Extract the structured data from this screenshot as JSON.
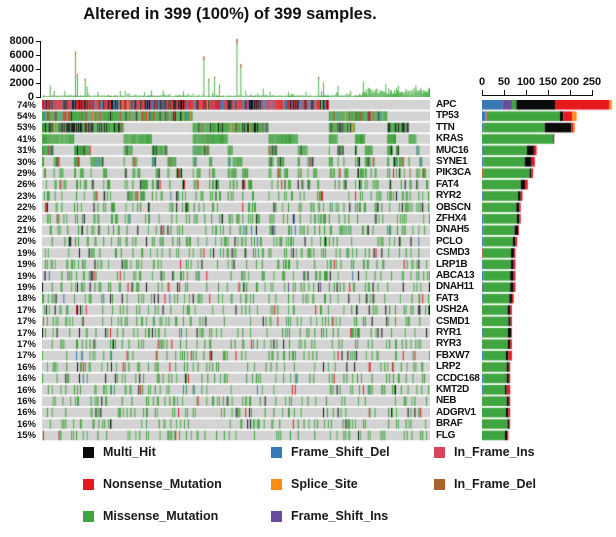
{
  "title": "Altered in 399 (100%) of 399 samples.",
  "chart_data": {
    "type": "oncoplot",
    "title": "Altered in 399 (100%) of 399 samples.",
    "samples": 399,
    "altered_samples": 399,
    "altered_pct": 100,
    "background_color": "#D3D3D3",
    "mutation_types": [
      {
        "key": "Frame_Shift_Del",
        "label": "Frame_Shift_Del",
        "color": "#3779B5"
      },
      {
        "key": "Frame_Shift_Ins",
        "label": "Frame_Shift_Ins",
        "color": "#6A4C9C"
      },
      {
        "key": "In_Frame_Ins",
        "label": "In_Frame_Ins",
        "color": "#D6455C"
      },
      {
        "key": "In_Frame_Del",
        "label": "In_Frame_Del",
        "color": "#A8622F"
      },
      {
        "key": "Missense_Mutation",
        "label": "Missense_Mutation",
        "color": "#3FA53F"
      },
      {
        "key": "Multi_Hit",
        "label": "Multi_Hit",
        "color": "#0A0A0A"
      },
      {
        "key": "Nonsense_Mutation",
        "label": "Nonsense_Mutation",
        "color": "#E4191C"
      },
      {
        "key": "Splice_Site",
        "label": "Splice_Site",
        "color": "#FC8A15"
      }
    ],
    "legend_rows": [
      [
        "Multi_Hit",
        "Frame_Shift_Del",
        "In_Frame_Ins"
      ],
      [
        "Nonsense_Mutation",
        "Splice_Site",
        "In_Frame_Del"
      ],
      [
        "Missense_Mutation",
        "Frame_Shift_Ins"
      ]
    ],
    "top_panel": {
      "type": "bar",
      "y_ticks": [
        8000,
        6000,
        4000,
        2000,
        0
      ],
      "ymax": 8000,
      "bar_color": "#4CAE4C",
      "tip_color": "#D9532B",
      "peaks": [
        {
          "i": 8,
          "v": 1700
        },
        {
          "i": 12,
          "v": 900
        },
        {
          "i": 34,
          "v": 6500
        },
        {
          "i": 36,
          "v": 3300
        },
        {
          "i": 44,
          "v": 2600
        },
        {
          "i": 46,
          "v": 1500
        },
        {
          "i": 85,
          "v": 900
        },
        {
          "i": 105,
          "v": 700
        },
        {
          "i": 166,
          "v": 5800
        },
        {
          "i": 171,
          "v": 2600
        },
        {
          "i": 177,
          "v": 2900
        },
        {
          "i": 182,
          "v": 1800
        },
        {
          "i": 200,
          "v": 8300
        },
        {
          "i": 204,
          "v": 4700
        },
        {
          "i": 227,
          "v": 1200
        },
        {
          "i": 284,
          "v": 2900
        },
        {
          "i": 289,
          "v": 2100
        },
        {
          "i": 304,
          "v": 1600
        },
        {
          "i": 330,
          "v": 2200
        }
      ]
    },
    "right_panel": {
      "type": "stacked-bar",
      "axis_ticks": [
        0,
        50,
        100,
        150,
        200,
        250
      ]
    },
    "genes": [
      {
        "name": "APC",
        "pct": 74,
        "segments": {
          "Frame_Shift_Del": 46,
          "Frame_Shift_Ins": 22,
          "Missense_Mutation": 10,
          "Multi_Hit": 88,
          "Nonsense_Mutation": 124,
          "Splice_Site": 5
        }
      },
      {
        "name": "TP53",
        "pct": 54,
        "segments": {
          "Frame_Shift_Del": 8,
          "In_Frame_Ins": 3,
          "Missense_Mutation": 166,
          "Multi_Hit": 8,
          "Nonsense_Mutation": 20,
          "Splice_Site": 10
        }
      },
      {
        "name": "TTN",
        "pct": 53,
        "segments": {
          "Frame_Shift_Del": 3,
          "Missense_Mutation": 140,
          "Multi_Hit": 60,
          "Nonsense_Mutation": 5,
          "Splice_Site": 3
        }
      },
      {
        "name": "KRAS",
        "pct": 41,
        "segments": {
          "Missense_Mutation": 162,
          "Multi_Hit": 2
        }
      },
      {
        "name": "MUC16",
        "pct": 31,
        "segments": {
          "Frame_Shift_Del": 2,
          "Missense_Mutation": 100,
          "Multi_Hit": 16,
          "Nonsense_Mutation": 6
        }
      },
      {
        "name": "SYNE1",
        "pct": 30,
        "segments": {
          "Frame_Shift_Del": 3,
          "Missense_Mutation": 94,
          "Multi_Hit": 16,
          "Nonsense_Mutation": 7
        }
      },
      {
        "name": "PIK3CA",
        "pct": 29,
        "segments": {
          "In_Frame_Del": 4,
          "Missense_Mutation": 104,
          "Multi_Hit": 4,
          "Nonsense_Mutation": 4
        }
      },
      {
        "name": "FAT4",
        "pct": 26,
        "segments": {
          "Missense_Mutation": 88,
          "Multi_Hit": 10,
          "Nonsense_Mutation": 6
        }
      },
      {
        "name": "RYR2",
        "pct": 23,
        "segments": {
          "Frame_Shift_Del": 2,
          "Missense_Mutation": 80,
          "Multi_Hit": 6,
          "Nonsense_Mutation": 4
        }
      },
      {
        "name": "OBSCN",
        "pct": 22,
        "segments": {
          "Missense_Mutation": 78,
          "Multi_Hit": 7,
          "Nonsense_Mutation": 3
        }
      },
      {
        "name": "ZFHX4",
        "pct": 22,
        "segments": {
          "Frame_Shift_Del": 3,
          "Missense_Mutation": 76,
          "Multi_Hit": 6,
          "Nonsense_Mutation": 3
        }
      },
      {
        "name": "DNAH5",
        "pct": 21,
        "segments": {
          "Frame_Shift_Del": 3,
          "Missense_Mutation": 71,
          "Multi_Hit": 8,
          "Nonsense_Mutation": 2
        }
      },
      {
        "name": "PCLO",
        "pct": 20,
        "segments": {
          "Frame_Shift_Del": 3,
          "Missense_Mutation": 67,
          "Multi_Hit": 6,
          "Nonsense_Mutation": 4
        }
      },
      {
        "name": "CSMD3",
        "pct": 19,
        "segments": {
          "In_Frame_Ins": 2,
          "Missense_Mutation": 64,
          "Multi_Hit": 7,
          "Nonsense_Mutation": 3
        }
      },
      {
        "name": "LRP1B",
        "pct": 19,
        "segments": {
          "Frame_Shift_Del": 2,
          "Missense_Mutation": 64,
          "Multi_Hit": 6,
          "Nonsense_Mutation": 4
        }
      },
      {
        "name": "ABCA13",
        "pct": 19,
        "segments": {
          "Frame_Shift_Del": 3,
          "Missense_Mutation": 61,
          "Multi_Hit": 8,
          "Nonsense_Mutation": 4
        }
      },
      {
        "name": "DNAH11",
        "pct": 19,
        "segments": {
          "Frame_Shift_Ins": 2,
          "Missense_Mutation": 62,
          "Multi_Hit": 8,
          "Nonsense_Mutation": 4
        }
      },
      {
        "name": "FAT3",
        "pct": 18,
        "segments": {
          "Frame_Shift_Del": 2,
          "Missense_Mutation": 60,
          "Multi_Hit": 6,
          "Nonsense_Mutation": 4
        }
      },
      {
        "name": "USH2A",
        "pct": 17,
        "segments": {
          "Missense_Mutation": 58,
          "Multi_Hit": 6,
          "Nonsense_Mutation": 4
        }
      },
      {
        "name": "CSMD1",
        "pct": 17,
        "segments": {
          "Missense_Mutation": 60,
          "Multi_Hit": 5,
          "Nonsense_Mutation": 3
        }
      },
      {
        "name": "RYR1",
        "pct": 17,
        "segments": {
          "Frame_Shift_Del": 2,
          "Missense_Mutation": 57,
          "Multi_Hit": 7,
          "Nonsense_Mutation": 2
        }
      },
      {
        "name": "RYR3",
        "pct": 17,
        "segments": {
          "Missense_Mutation": 59,
          "Multi_Hit": 5,
          "Nonsense_Mutation": 4
        }
      },
      {
        "name": "FBXW7",
        "pct": 17,
        "segments": {
          "Frame_Shift_Del": 4,
          "Missense_Mutation": 50,
          "Multi_Hit": 6,
          "Nonsense_Mutation": 8
        }
      },
      {
        "name": "LRP2",
        "pct": 16,
        "segments": {
          "Missense_Mutation": 56,
          "Multi_Hit": 5,
          "Nonsense_Mutation": 3
        }
      },
      {
        "name": "CCDC168",
        "pct": 16,
        "segments": {
          "Frame_Shift_Del": 3,
          "Missense_Mutation": 53,
          "Multi_Hit": 5,
          "Nonsense_Mutation": 3
        }
      },
      {
        "name": "KMT2D",
        "pct": 16,
        "segments": {
          "Frame_Shift_Del": 4,
          "Missense_Mutation": 48,
          "Multi_Hit": 4,
          "Nonsense_Mutation": 8
        }
      },
      {
        "name": "NEB",
        "pct": 16,
        "segments": {
          "Missense_Mutation": 56,
          "Multi_Hit": 5,
          "Nonsense_Mutation": 3
        }
      },
      {
        "name": "ADGRV1",
        "pct": 16,
        "segments": {
          "Missense_Mutation": 54,
          "Multi_Hit": 6,
          "Nonsense_Mutation": 4
        }
      },
      {
        "name": "BRAF",
        "pct": 16,
        "segments": {
          "Missense_Mutation": 58,
          "Multi_Hit": 4,
          "Nonsense_Mutation": 2
        }
      },
      {
        "name": "FLG",
        "pct": 15,
        "segments": {
          "Missense_Mutation": 52,
          "Multi_Hit": 5,
          "Nonsense_Mutation": 3
        }
      }
    ]
  }
}
